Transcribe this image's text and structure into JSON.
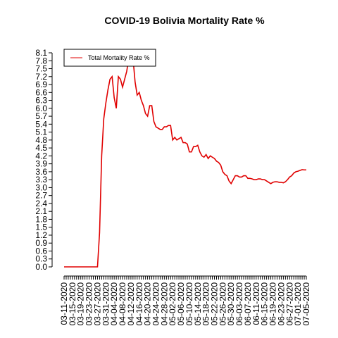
{
  "chart_data": {
    "type": "line",
    "title": "COVID-19 Bolivia Mortality Rate %",
    "categories": [
      "03-11-2020",
      null,
      null,
      null,
      "03-15-2020",
      null,
      null,
      null,
      "03-19-2020",
      null,
      null,
      null,
      "03-23-2020",
      null,
      null,
      null,
      "03-27-2020",
      null,
      null,
      null,
      "03-31-2020",
      null,
      null,
      null,
      "04-04-2020",
      null,
      null,
      null,
      "04-08-2020",
      null,
      null,
      null,
      "04-12-2020",
      null,
      null,
      null,
      "04-16-2020",
      null,
      null,
      null,
      "04-20-2020",
      null,
      null,
      null,
      "04-24-2020",
      null,
      null,
      null,
      "04-28-2020",
      null,
      null,
      null,
      "05-02-2020",
      null,
      null,
      null,
      "05-06-2020",
      null,
      null,
      null,
      "05-10-2020",
      null,
      null,
      null,
      "05-14-2020",
      null,
      null,
      null,
      "05-18-2020",
      null,
      null,
      null,
      "05-22-2020",
      null,
      null,
      null,
      "05-26-2020",
      null,
      null,
      null,
      "05-30-2020",
      null,
      null,
      null,
      "06-03-2020",
      null,
      null,
      null,
      "06-07-2020",
      null,
      null,
      null,
      "06-11-2020",
      null,
      null,
      null,
      "06-15-2020",
      null,
      null,
      null,
      "06-19-2020",
      null,
      null,
      null,
      "06-23-2020",
      null,
      null,
      null,
      "06-27-2020",
      null,
      null,
      null,
      "07-01-2020",
      null,
      null,
      null,
      "07-05-2020"
    ],
    "series": [
      {
        "name": "Total Mortality Rate %",
        "color": "#e00000",
        "values": [
          0,
          0,
          0,
          0,
          0,
          0,
          0,
          0,
          0,
          0,
          0,
          0,
          0,
          0,
          0,
          0,
          0,
          1.3,
          4.2,
          5.6,
          6.2,
          6.7,
          7.1,
          7.2,
          6.4,
          6.0,
          7.2,
          7.1,
          6.8,
          7.1,
          7.4,
          7.9,
          8.1,
          7.9,
          7.0,
          6.5,
          6.6,
          6.3,
          6.1,
          5.8,
          5.7,
          6.1,
          6.1,
          5.5,
          5.3,
          5.25,
          5.2,
          5.2,
          5.3,
          5.3,
          5.35,
          5.35,
          4.8,
          4.9,
          4.8,
          4.85,
          4.9,
          4.7,
          4.7,
          4.65,
          4.35,
          4.35,
          4.55,
          4.55,
          4.6,
          4.35,
          4.2,
          4.15,
          4.25,
          4.1,
          4.2,
          4.15,
          4.1,
          4.0,
          3.95,
          3.85,
          3.6,
          3.5,
          3.45,
          3.25,
          3.15,
          3.3,
          3.45,
          3.45,
          3.4,
          3.4,
          3.45,
          3.45,
          3.35,
          3.35,
          3.33,
          3.3,
          3.3,
          3.33,
          3.33,
          3.3,
          3.3,
          3.25,
          3.2,
          3.15,
          3.2,
          3.22,
          3.22,
          3.2,
          3.2,
          3.18,
          3.22,
          3.3,
          3.4,
          3.45,
          3.55,
          3.6,
          3.62,
          3.65,
          3.68,
          3.67,
          3.67
        ]
      }
    ],
    "ylim": [
      0,
      8.1
    ],
    "yticks": [
      {
        "value": 0,
        "label": "0.0"
      },
      0.3,
      0.6,
      0.9,
      1.2,
      1.5,
      1.8,
      2.1,
      2.4,
      2.7,
      {
        "value": 3,
        "label": "3.0"
      },
      3.3,
      3.6,
      3.9,
      4.2,
      4.5,
      4.8,
      5.1,
      5.4,
      5.7,
      {
        "value": 6,
        "label": "6.0"
      },
      6.3,
      6.6,
      6.9,
      7.2,
      7.5,
      7.8,
      8.1
    ],
    "legend": "topleft"
  }
}
